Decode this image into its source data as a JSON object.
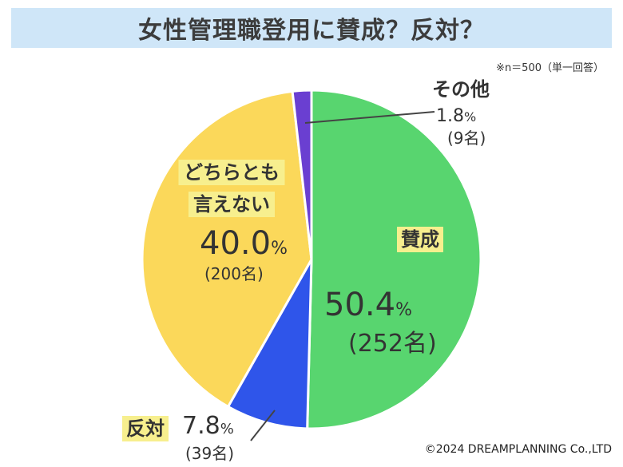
{
  "header": {
    "title": "女性管理職登用に賛成？反対？"
  },
  "note": "※n＝500（単一回答）",
  "copyright": "©2024 DREAMPLANNING Co.,LTD",
  "chart_data": {
    "type": "pie",
    "title": "女性管理職登用に賛成？反対？",
    "unit": "%",
    "slices": [
      {
        "label": "賛成",
        "value": 50.4,
        "count": "(252名)",
        "color": "#58d56f"
      },
      {
        "label": "反対",
        "value": 7.8,
        "count": "(39名)",
        "color": "#2f55ea"
      },
      {
        "label": "どちらとも言えない",
        "label_lines": [
          "どちらとも",
          "言えない"
        ],
        "value": 40.0,
        "count": "(200名)",
        "color": "#fbd85a"
      },
      {
        "label": "その他",
        "value": 1.8,
        "count": "(9名)",
        "color": "#6a3fd1"
      }
    ],
    "label_highlight_color": "#f7ef8e"
  }
}
